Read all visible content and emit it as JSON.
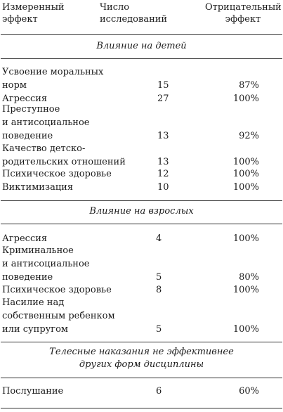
{
  "header": {
    "col1": "Измеренный\nэффект",
    "col2": "Число исследований",
    "col3": "Отрицательный\nэффект"
  },
  "sections": [
    {
      "title": "Влияние на детей",
      "rows": [
        {
          "label": "Усвоение моральных\nнорм",
          "studies": "15",
          "effect": "87%"
        },
        {
          "label": "Агрессия",
          "studies": "27",
          "effect": "100%"
        },
        {
          "label": "Преступное\nи антисоциальное\nповедение",
          "studies": "13",
          "effect": "92%"
        },
        {
          "label": "Качество детско-\nродительских отношений",
          "studies": "13",
          "effect": "100%"
        },
        {
          "label": "Психическое здоровье",
          "studies": "12",
          "effect": "100%"
        },
        {
          "label": "Виктимизация",
          "studies": "10",
          "effect": "100%"
        }
      ]
    },
    {
      "title": "Влияние на взрослых",
      "rows": [
        {
          "label": "Агрессия",
          "studies": "4",
          "effect": "100%"
        },
        {
          "label": "Криминальное\nи антисоциальное\nповедение",
          "studies": "5",
          "effect": "80%"
        },
        {
          "label": "Психическое здоровье",
          "studies": "8",
          "effect": "100%"
        },
        {
          "label": "Насилие над\nсобственным ребенком\nили супругом",
          "studies": "5",
          "effect": "100%"
        }
      ]
    },
    {
      "title": "Телесные наказания не эффективнее\nдругих форм дисциплины",
      "rows": [
        {
          "label": "Послушание",
          "studies": "6",
          "effect": "60%"
        }
      ]
    }
  ]
}
